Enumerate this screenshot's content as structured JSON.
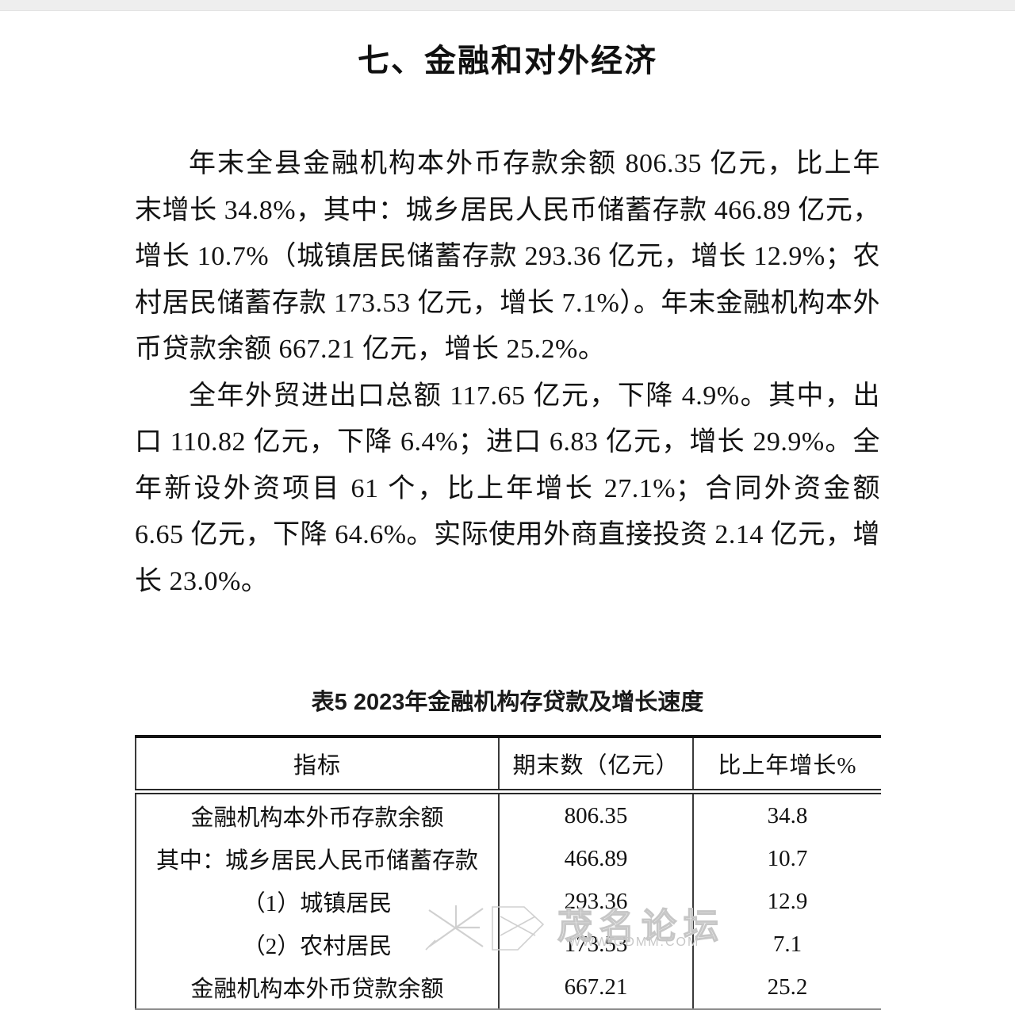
{
  "page_title": "七、金融和对外经济",
  "paragraphs": [
    "年末全县金融机构本外币存款余额 806.35 亿元，比上年末增长 34.8%，其中：城乡居民人民币储蓄存款 466.89 亿元，增长 10.7%（城镇居民储蓄存款 293.36 亿元，增长 12.9%；农村居民储蓄存款 173.53 亿元，增长 7.1%）。年末金融机构本外币贷款余额 667.21 亿元，增长 25.2%。",
    "全年外贸进出口总额 117.65 亿元，下降 4.9%。其中，出口 110.82 亿元，下降 6.4%；进口 6.83 亿元，增长 29.9%。全年新设外资项目 61 个，比上年增长 27.1%；合同外资金额 6.65 亿元，下降 64.6%。实际使用外商直接投资 2.14 亿元，增长 23.0%。"
  ],
  "table": {
    "caption": "表5 2023年金融机构存贷款及增长速度",
    "headers": [
      "指标",
      "期末数（亿元）",
      "比上年增长%"
    ],
    "rows": [
      [
        "金融机构本外币存款余额",
        "806.35",
        "34.8"
      ],
      [
        "其中：城乡居民人民币储蓄存款",
        "466.89",
        "10.7"
      ],
      [
        "（1）城镇居民",
        "293.36",
        "12.9"
      ],
      [
        "（2）农村居民",
        "173.53",
        "7.1"
      ],
      [
        "金融机构本外币贷款余额",
        "667.21",
        "25.2"
      ]
    ]
  },
  "watermark": {
    "logo_text": "茂名论坛",
    "site_url": "WWW.GDMM.COM"
  },
  "colors": {
    "page_bg": "#ffffff",
    "top_strip": "#eeeeee",
    "text": "#111111",
    "table_border": "#2a2a2a",
    "watermark": "#c6c6c6"
  }
}
